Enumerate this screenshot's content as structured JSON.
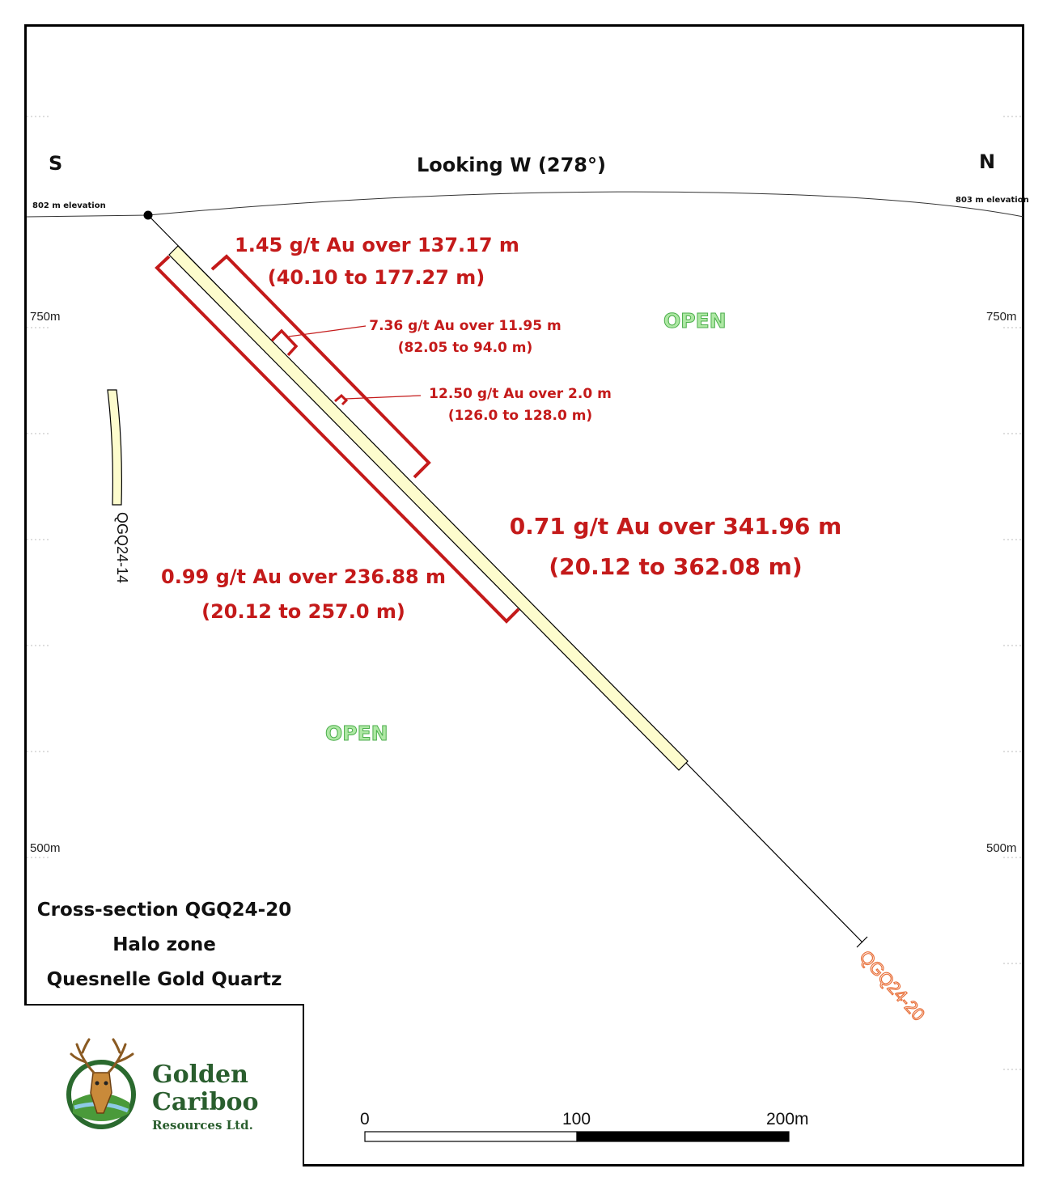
{
  "header": {
    "south_label": "S",
    "north_label": "N",
    "view_direction": "Looking W (278°)",
    "left_elevation": "802 m elevation",
    "right_elevation": "803 m elevation"
  },
  "grid_labels": {
    "upper_left": "750m",
    "upper_right": "750m",
    "lower_left": "500m",
    "lower_right": "500m"
  },
  "intercepts": [
    {
      "grade": "1.45 g/t Au over 137.17 m",
      "interval": "(40.10 to 177.27 m)"
    },
    {
      "grade": "7.36 g/t Au over 11.95 m",
      "interval": "(82.05 to 94.0 m)"
    },
    {
      "grade": "12.50 g/t Au over 2.0 m",
      "interval": "(126.0 to 128.0 m)"
    },
    {
      "grade": "0.71 g/t Au over 341.96 m",
      "interval": "(20.12 to 362.08 m)"
    },
    {
      "grade": "0.99 g/t Au over 236.88 m",
      "interval": "(20.12 to 257.0 m)"
    }
  ],
  "open_labels": [
    "OPEN",
    "OPEN"
  ],
  "drill_holes": {
    "main": "QGQ24-20",
    "secondary": "QGQ24-14"
  },
  "caption": {
    "line1": "Cross-section QGQ24-20",
    "line2": "Halo zone",
    "line3": "Quesnelle Gold Quartz"
  },
  "logo": {
    "word1": "Golden",
    "word2": "Cariboo",
    "word3": "Resources Ltd."
  },
  "scale_bar": {
    "start": "0",
    "mid": "100",
    "end": "200m"
  },
  "colors": {
    "intercept_red": "#c41a1a",
    "hole_fill": "#fdfccd",
    "open_green": "#aee8a4",
    "main_hole_label": "#e8703a",
    "logo_green": "#2a5e2e"
  }
}
